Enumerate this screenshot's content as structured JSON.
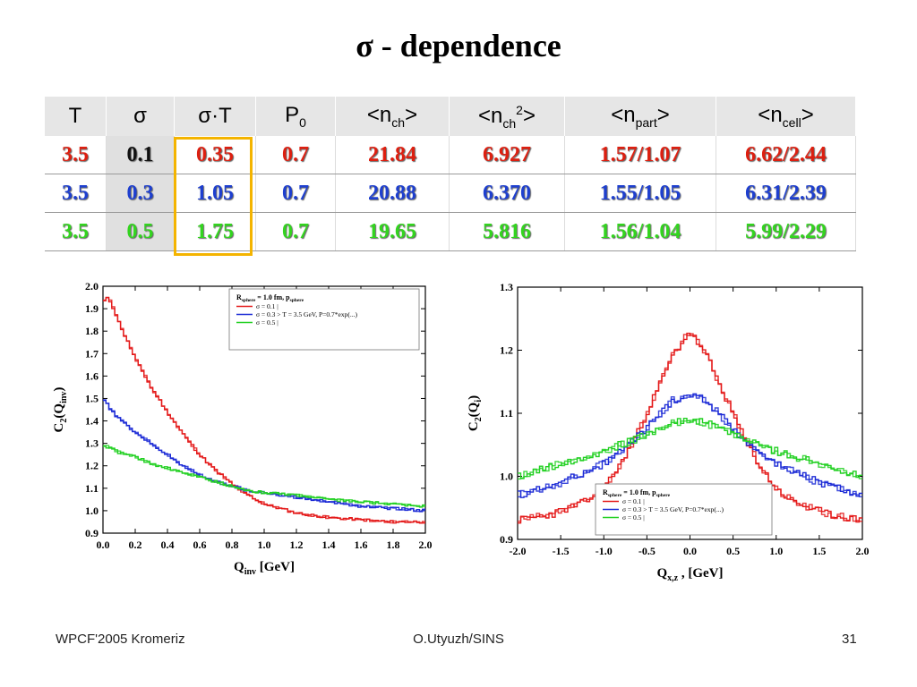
{
  "title": "σ - dependence",
  "table": {
    "headers": [
      {
        "main": "T",
        "sub": "",
        "sup": ""
      },
      {
        "main": "σ",
        "sub": "",
        "sup": ""
      },
      {
        "main": "σ·T",
        "sub": "",
        "sup": ""
      },
      {
        "main": "P",
        "sub": "0",
        "sup": ""
      },
      {
        "main": "<n",
        "sub": "ch",
        "sup": "",
        "end": ">"
      },
      {
        "main": "<n",
        "sub": "ch",
        "sup": "2",
        "end": ">"
      },
      {
        "main": "<n",
        "sub": "part",
        "sup": "",
        "end": ">"
      },
      {
        "main": "<n",
        "sub": "cell",
        "sup": "",
        "end": ">"
      }
    ],
    "rows": [
      {
        "color": "red",
        "cells": [
          "3.5",
          "0.1",
          "0.35",
          "0.7",
          "21.84",
          "6.927",
          "1.57/1.07",
          "6.62/2.44"
        ]
      },
      {
        "color": "blue",
        "cells": [
          "3.5",
          "0.3",
          "1.05",
          "0.7",
          "20.88",
          "6.370",
          "1.55/1.05",
          "6.31/2.39"
        ]
      },
      {
        "color": "green",
        "cells": [
          "3.5",
          "0.5",
          "1.75",
          "0.7",
          "19.65",
          "5.816",
          "1.56/1.04",
          "5.99/2.29"
        ]
      }
    ]
  },
  "chart_data": [
    {
      "type": "line",
      "xlabel": "Q_inv [GeV]",
      "xlabel_main": "Q",
      "xlabel_sub": "inv",
      "xlabel_rest": "[GeV]",
      "ylabel": "C_2(Q_inv)",
      "ylabel_main": "C",
      "ylabel_sub": "2",
      "ylabel_mid": "(Q",
      "ylabel_sub2": "inv",
      "ylabel_end": ")",
      "xlim": [
        0.0,
        2.0
      ],
      "ylim": [
        0.9,
        2.0
      ],
      "xticks": [
        "0.0",
        "0.2",
        "0.4",
        "0.6",
        "0.8",
        "1.0",
        "1.2",
        "1.4",
        "1.6",
        "1.8",
        "2.0"
      ],
      "yticks": [
        "0.9",
        "1.0",
        "1.1",
        "1.2",
        "1.3",
        "1.4",
        "1.5",
        "1.6",
        "1.7",
        "1.8",
        "1.9",
        "2.0"
      ],
      "legend": {
        "header_main": "R",
        "header_sub": "sphere",
        "header_rest": " = 1.0 fm, p",
        "header_sub2": "sphere",
        "entries": [
          "σ = 0.1 |",
          "σ = 0.3  > T = 3.5 GeV, P=0.7*exp(...)",
          "σ = 0.5 |"
        ],
        "placement": "top-right"
      },
      "series": [
        {
          "color": "#e41a1a",
          "x": [
            0.0,
            0.02,
            0.05,
            0.1,
            0.15,
            0.2,
            0.3,
            0.4,
            0.5,
            0.6,
            0.7,
            0.8,
            0.9,
            1.0,
            1.2,
            1.4,
            1.6,
            1.8,
            2.0
          ],
          "y": [
            1.92,
            1.95,
            1.93,
            1.84,
            1.76,
            1.68,
            1.55,
            1.44,
            1.34,
            1.25,
            1.18,
            1.12,
            1.07,
            1.03,
            0.99,
            0.97,
            0.96,
            0.95,
            0.95
          ]
        },
        {
          "color": "#1c2bd6",
          "x": [
            0.0,
            0.05,
            0.1,
            0.2,
            0.3,
            0.4,
            0.5,
            0.6,
            0.7,
            0.8,
            0.9,
            1.0,
            1.2,
            1.4,
            1.6,
            1.8,
            2.0
          ],
          "y": [
            1.5,
            1.45,
            1.41,
            1.35,
            1.3,
            1.25,
            1.2,
            1.16,
            1.13,
            1.11,
            1.09,
            1.08,
            1.06,
            1.04,
            1.02,
            1.01,
            1.0
          ]
        },
        {
          "color": "#22d022",
          "x": [
            0.0,
            0.05,
            0.1,
            0.2,
            0.3,
            0.4,
            0.5,
            0.6,
            0.7,
            0.8,
            0.9,
            1.0,
            1.2,
            1.4,
            1.6,
            1.8,
            2.0
          ],
          "y": [
            1.29,
            1.28,
            1.26,
            1.24,
            1.21,
            1.19,
            1.17,
            1.15,
            1.13,
            1.11,
            1.09,
            1.08,
            1.07,
            1.05,
            1.04,
            1.03,
            1.02
          ]
        }
      ]
    },
    {
      "type": "line",
      "xlabel": "Q_x,z, [GeV]",
      "xlabel_main": "Q",
      "xlabel_sub": "x,z",
      "xlabel_rest": ",  [GeV]",
      "ylabel": "C_2(Q_i)",
      "ylabel_main": "C",
      "ylabel_sub": "2",
      "ylabel_mid": "(Q",
      "ylabel_sub2": "i",
      "ylabel_end": ")",
      "xlim": [
        -2.0,
        2.0
      ],
      "ylim": [
        0.9,
        1.3
      ],
      "xticks": [
        "-2.0",
        "-1.5",
        "-1.0",
        "-0.5",
        "0.0",
        "0.5",
        "1.0",
        "1.5",
        "2.0"
      ],
      "yticks": [
        "0.9",
        "1.0",
        "1.1",
        "1.2",
        "1.3"
      ],
      "legend": {
        "header_main": "R",
        "header_sub": "sphere",
        "header_rest": " = 1.0 fm, p",
        "header_sub2": "sphere",
        "entries": [
          "σ = 0.1 |",
          "σ = 0.3  > T = 3.5 GeV, P=0.7*exp(...)",
          "σ = 0.5 |"
        ],
        "placement": "bottom-center"
      },
      "series": [
        {
          "color": "#e41a1a",
          "x": [
            -2.0,
            -1.6,
            -1.2,
            -1.0,
            -0.8,
            -0.6,
            -0.4,
            -0.2,
            0.0,
            0.2,
            0.4,
            0.6,
            0.8,
            1.0,
            1.2,
            1.6,
            2.0
          ],
          "y": [
            0.93,
            0.94,
            0.96,
            0.98,
            1.02,
            1.07,
            1.13,
            1.19,
            1.23,
            1.19,
            1.13,
            1.07,
            1.02,
            0.98,
            0.96,
            0.94,
            0.93
          ]
        },
        {
          "color": "#1c2bd6",
          "x": [
            -2.0,
            -1.5,
            -1.0,
            -0.7,
            -0.4,
            -0.2,
            0.0,
            0.2,
            0.4,
            0.7,
            1.0,
            1.5,
            2.0
          ],
          "y": [
            0.97,
            0.99,
            1.02,
            1.05,
            1.09,
            1.12,
            1.13,
            1.12,
            1.09,
            1.05,
            1.02,
            0.99,
            0.97
          ]
        },
        {
          "color": "#22d022",
          "x": [
            -2.0,
            -1.5,
            -1.0,
            -0.6,
            -0.3,
            0.0,
            0.3,
            0.6,
            1.0,
            1.5,
            2.0
          ],
          "y": [
            1.0,
            1.02,
            1.04,
            1.06,
            1.08,
            1.09,
            1.08,
            1.06,
            1.04,
            1.02,
            1.0
          ]
        }
      ]
    }
  ],
  "footer": {
    "left": "WPCF'2005 Kromeriz",
    "center": "O.Utyuzh/SINS",
    "right": "31"
  }
}
